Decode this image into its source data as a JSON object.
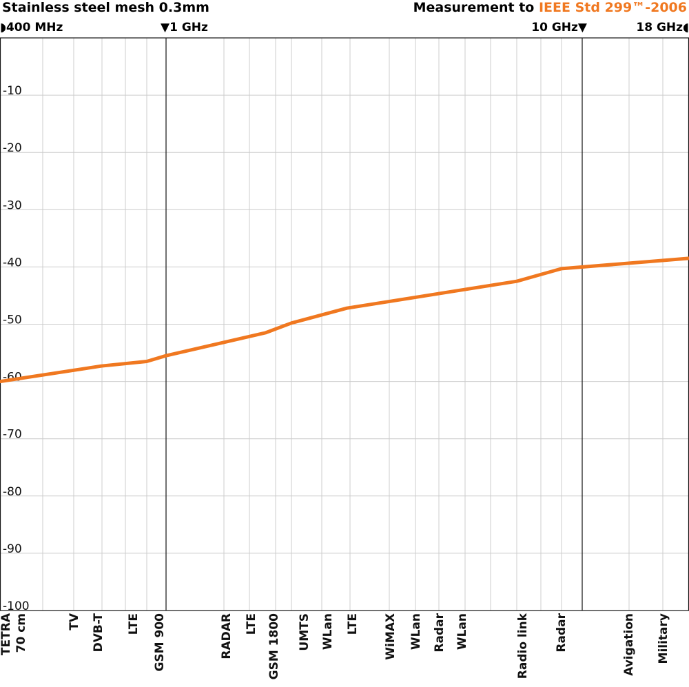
{
  "header": {
    "title": "Stainless steel mesh 0.3mm",
    "measurement_prefix": "Measurement to ",
    "measurement_standard": "IEEE Std 299™-2006"
  },
  "frequency_markers": [
    {
      "label": "400 MHz",
      "glyph": "◗"
    },
    {
      "label": "1 GHz",
      "glyph": "▼"
    },
    {
      "label": "10 GHz",
      "glyph": "▼"
    },
    {
      "label": "18 GHz",
      "glyph": "◖"
    }
  ],
  "colors": {
    "accent": "#f07820",
    "grid": "#cccccc",
    "frame": "#111111",
    "line": "#f07820"
  },
  "chart_data": {
    "type": "line",
    "title": "Stainless steel mesh 0.3mm",
    "xlabel": "",
    "ylabel": "",
    "ylim": [
      -100,
      0
    ],
    "x_scale": "frequency (400 MHz – 18 GHz)",
    "yticks": [
      -10,
      -20,
      -30,
      -40,
      -50,
      -60,
      -70,
      -80,
      -90,
      -100
    ],
    "grid": true,
    "series": [
      {
        "name": "",
        "points": [
          {
            "f": "400 MHz",
            "y": -60
          },
          {
            "f": "700 MHz",
            "y": -57.3
          },
          {
            "f": "900 MHz",
            "y": -56.5
          },
          {
            "f": "1 GHz",
            "y": -55.5
          },
          {
            "f": "1.8 GHz",
            "y": -51.5
          },
          {
            "f": "2.1 GHz",
            "y": -49.8
          },
          {
            "f": "2.6 GHz",
            "y": -47.2
          },
          {
            "f": "5 GHz",
            "y": -42.5
          },
          {
            "f": "8 GHz",
            "y": -40.3
          },
          {
            "f": "18 GHz",
            "y": -38.5
          }
        ]
      }
    ],
    "band_labels": [
      "TETRA\n70 cm",
      "TV",
      "DVB-T",
      "LTE",
      "GSM 900",
      "RADAR",
      "LTE",
      "GSM 1800",
      "UMTS",
      "WLan",
      "LTE",
      "WiMAX",
      "WLan",
      "Radar",
      "WLan",
      "Radio link",
      "Radar",
      "Avigation",
      "Military"
    ]
  }
}
